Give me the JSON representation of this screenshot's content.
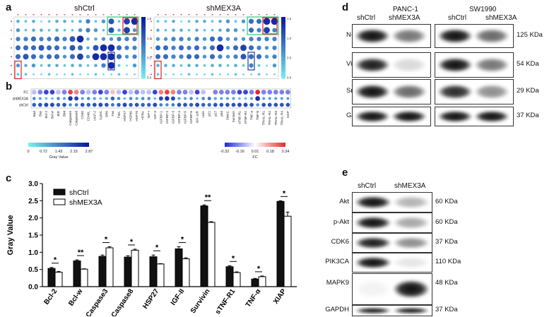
{
  "panels": {
    "a": {
      "letter": "a",
      "titles": [
        "shCtrl",
        "shMEX3A"
      ],
      "grid": {
        "rows": 7,
        "cols": 16,
        "values_ctrl": [
          [
            0.3,
            0.2,
            0.3,
            0.1,
            0.2,
            0.3,
            0.3,
            0.2,
            0.3,
            0.5,
            0.2,
            0.4,
            0.7,
            0.2,
            0.8,
            0.9
          ],
          [
            0.4,
            0.2,
            0.3,
            0.3,
            0.2,
            0.3,
            0.2,
            0.2,
            0.4,
            0.5,
            0.4,
            0.2,
            0.7,
            0.3,
            0.8,
            0.4
          ],
          [
            0.5,
            0.5,
            0.6,
            0.5,
            0.5,
            0.6,
            0.5,
            0.7,
            0.9,
            0.3,
            0.3,
            0.4,
            0.4,
            0.5,
            0.5,
            0.5
          ],
          [
            0.6,
            0.6,
            0.6,
            0.7,
            0.6,
            0.6,
            0.4,
            0.7,
            0.6,
            0.3,
            0.7,
            0.9,
            0.9,
            0.6,
            0.5,
            0.5
          ],
          [
            0.6,
            0.7,
            0.6,
            0.5,
            0.6,
            0.6,
            0.4,
            0.6,
            0.8,
            0.4,
            0.9,
            0.9,
            0.9,
            0.6,
            0.4,
            0.5
          ],
          [
            0.4,
            0.3,
            0.4,
            0.2,
            0.3,
            0.3,
            0.2,
            0.3,
            0.3,
            0.2,
            0.3,
            0.5,
            0.9,
            0.2,
            0.1,
            0.4
          ],
          [
            0.2,
            0.2,
            0.1,
            0.1,
            0.2,
            0.1,
            0.1,
            0.2,
            0.1,
            0.1,
            0.2,
            0.1,
            0.1,
            0.2,
            0.1,
            0.1
          ]
        ],
        "values_mex": [
          [
            0.2,
            0.2,
            0.3,
            0.1,
            0.2,
            0.3,
            0.3,
            0.2,
            0.3,
            0.4,
            0.2,
            0.4,
            0.6,
            0.6,
            0.9,
            0.9
          ],
          [
            0.3,
            0.2,
            0.3,
            0.3,
            0.2,
            0.3,
            0.2,
            0.2,
            0.3,
            0.4,
            0.4,
            0.2,
            0.6,
            0.5,
            0.8,
            0.5
          ],
          [
            0.4,
            0.4,
            0.5,
            0.5,
            0.4,
            0.5,
            0.4,
            0.6,
            0.6,
            0.4,
            0.4,
            0.4,
            0.5,
            0.5,
            0.5,
            0.5
          ],
          [
            0.6,
            0.6,
            0.5,
            0.6,
            0.5,
            0.6,
            0.4,
            0.6,
            0.9,
            0.4,
            0.6,
            0.8,
            0.6,
            0.5,
            0.4,
            0.5
          ],
          [
            0.6,
            0.6,
            0.5,
            0.5,
            0.6,
            0.6,
            0.4,
            0.6,
            0.5,
            0.4,
            0.5,
            0.7,
            0.6,
            0.6,
            0.4,
            0.5
          ],
          [
            0.3,
            0.3,
            0.3,
            0.2,
            0.3,
            0.3,
            0.2,
            0.3,
            0.3,
            0.2,
            0.3,
            0.2,
            0.5,
            0.2,
            0.1,
            0.4
          ],
          [
            0.2,
            0.1,
            0.1,
            0.1,
            0.2,
            0.1,
            0.1,
            0.2,
            0.1,
            0.1,
            0.2,
            0.1,
            0.1,
            0.2,
            0.1,
            0.1
          ]
        ]
      },
      "colorbar_ticks": [
        "1.5",
        "1.0",
        "0.5",
        "0.0"
      ]
    },
    "b": {
      "letter": "b",
      "row_labels": [
        "FC",
        "shMEX3A",
        "shCtrl"
      ],
      "genes": [
        "Bad",
        "Bax",
        "Bcl-2",
        "Bcl-w",
        "BID",
        "BIM",
        "Caspase3",
        "Caspase8",
        "CD40",
        "CD40L",
        "cIAP-2",
        "CytoC",
        "DR6",
        "Fas",
        "FasL",
        "HSP27",
        "HSP60",
        "HSP70",
        "HTRA",
        "IGF-I",
        "IGF-II",
        "IGFBP-1",
        "IGFBP-2",
        "IGFBP-3",
        "IGFBP-4",
        "IGFBP-5",
        "IGFBP-6",
        "IGF-1sR",
        "Livin",
        "p21",
        "p27",
        "p53",
        "SMAC",
        "Survivin",
        "sTNF-R1",
        "sTNF-R2",
        "TNF-a",
        "TNF-b",
        "TRAIL-R1",
        "TRAIL-R2",
        "TRAIL-R3",
        "TRAIL-R4",
        "XIAP"
      ],
      "fc_values": [
        -0.1,
        -0.2,
        -0.3,
        -0.3,
        -0.1,
        -0.2,
        0.3,
        0.2,
        -0.2,
        -0.1,
        -0.2,
        -0.3,
        -0.2,
        0.1,
        -0.1,
        -0.3,
        -0.1,
        -0.2,
        -0.1,
        -0.1,
        -0.3,
        0.2,
        0.3,
        0.2,
        -0.2,
        -0.2,
        -0.1,
        -0.3,
        -0.1,
        0.0,
        -0.2,
        -0.2,
        -0.2,
        -0.2,
        -0.3,
        -0.3,
        -0.2,
        0.34,
        -0.2,
        -0.2,
        -0.2,
        -0.2,
        -0.2
      ],
      "gray_legend": {
        "title": "Gray Value",
        "ticks": [
          "0",
          "0.72",
          "1.43",
          "2.15",
          "2.87"
        ]
      },
      "fc_legend": {
        "title": "FC",
        "ticks": [
          "-0.32",
          "-0.16",
          "0.01",
          "0.18",
          "0.34"
        ]
      }
    },
    "c": {
      "letter": "c",
      "legend": {
        "ctrl": "shCtrl",
        "mex": "shMEX3A"
      },
      "sig": [
        "*",
        "**",
        "*",
        "*",
        "*",
        "*",
        "**",
        "*",
        "*",
        "*"
      ]
    },
    "d": {
      "letter": "d",
      "cell_lines": [
        "PANC-1",
        "SW1990"
      ],
      "lanes": [
        "shCtrl",
        "shMEX3A"
      ],
      "proteins": [
        {
          "name": "N-cadherin",
          "kda": "125 KDa",
          "ctrl": 0.95,
          "mex": 0.55,
          "ctrl2": 0.95,
          "mex2": 0.6
        },
        {
          "name": "Vimentin",
          "kda": "54 KDa",
          "ctrl": 0.9,
          "mex": 0.15,
          "ctrl2": 0.95,
          "mex2": 0.55
        },
        {
          "name": "Snail",
          "kda": "29 KDa",
          "ctrl": 0.95,
          "mex": 0.6,
          "ctrl2": 0.85,
          "mex2": 0.45
        },
        {
          "name": "GAPDH",
          "kda": "37 KDa",
          "ctrl": 0.95,
          "mex": 0.95,
          "ctrl2": 0.95,
          "mex2": 0.95
        }
      ]
    },
    "e": {
      "letter": "e",
      "lanes": [
        "shCtrl",
        "shMEX3A"
      ],
      "proteins": [
        {
          "name": "Akt",
          "kda": "60 KDa",
          "ctrl": 0.95,
          "mex": 0.3
        },
        {
          "name": "p-Akt",
          "kda": "60 KDa",
          "ctrl": 0.95,
          "mex": 0.35
        },
        {
          "name": "CDK6",
          "kda": "37 KDa",
          "ctrl": 0.9,
          "mex": 0.45
        },
        {
          "name": "PIK3CA",
          "kda": "110 KDa",
          "ctrl": 0.95,
          "mex": 0.1
        },
        {
          "name": "MAPK9",
          "kda": "48 KDa",
          "ctrl": 0.05,
          "mex": 0.95
        },
        {
          "name": "GAPDH",
          "kda": "37 KDa",
          "ctrl": 0.95,
          "mex": 0.95
        }
      ]
    }
  },
  "chart_data": {
    "type": "bar",
    "categories": [
      "Bcl-2",
      "Bcl-w",
      "Caspase3",
      "Caspase8",
      "HSP27",
      "IGF-II",
      "Survivin",
      "sTNF-R1",
      "TNF-α",
      "XIAP"
    ],
    "series": [
      {
        "name": "shCtrl",
        "values": [
          0.53,
          0.75,
          0.88,
          0.86,
          0.87,
          1.1,
          2.35,
          0.58,
          0.22,
          2.48
        ]
      },
      {
        "name": "shMEX3A",
        "values": [
          0.42,
          0.51,
          1.13,
          1.06,
          0.66,
          0.81,
          1.87,
          0.41,
          0.29,
          2.05
        ]
      }
    ],
    "errors": [
      [
        0.03,
        0.03,
        0.04,
        0.04,
        0.05,
        0.06,
        0.03,
        0.03,
        0.02,
        0.02
      ],
      [
        0.02,
        0.01,
        0.03,
        0.03,
        0.01,
        0.03,
        0.02,
        0.02,
        0.02,
        0.12
      ]
    ],
    "ylabel": "Gray Value",
    "ylim": [
      0,
      3.0
    ],
    "yticks": [
      "0.0",
      "0.5",
      "1.0",
      "1.5",
      "2.0",
      "2.5",
      "3.0"
    ],
    "legend": "top-left"
  }
}
